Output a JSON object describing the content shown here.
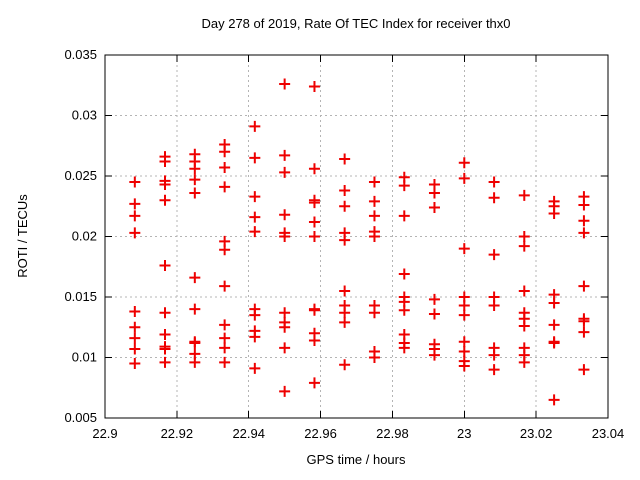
{
  "chart_data": {
    "type": "scatter",
    "title": "Day 278 of 2019, Rate Of TEC Index for receiver thx0",
    "xlabel": "GPS time / hours",
    "ylabel": "ROTI / TECUs",
    "xlim": [
      22.9,
      23.04
    ],
    "ylim": [
      0.005,
      0.035
    ],
    "x_ticks": [
      22.9,
      22.92,
      22.94,
      22.96,
      22.98,
      23,
      23.02,
      23.04
    ],
    "x_tick_labels": [
      "22.9",
      "22.92",
      "22.94",
      "22.96",
      "22.98",
      "23",
      "23.02",
      "23.04"
    ],
    "y_ticks": [
      0.005,
      0.01,
      0.015,
      0.02,
      0.025,
      0.03,
      0.035
    ],
    "y_tick_labels": [
      "0.005",
      "0.01",
      "0.015",
      "0.02",
      "0.025",
      "0.03",
      "0.035"
    ],
    "grid": true,
    "grid_color": "#b4b4b4",
    "border_color": "#000000",
    "legend": "none",
    "marker": {
      "shape": "plus",
      "color": "#ee0000",
      "size": 11
    },
    "series": [
      {
        "points": [
          [
            22.9083,
            0.0245
          ],
          [
            22.9083,
            0.0227
          ],
          [
            22.9083,
            0.0217
          ],
          [
            22.9083,
            0.0203
          ],
          [
            22.9083,
            0.0138
          ],
          [
            22.9083,
            0.0125
          ],
          [
            22.9083,
            0.0116
          ],
          [
            22.9083,
            0.0107
          ],
          [
            22.9083,
            0.0095
          ],
          [
            22.9167,
            0.0266
          ],
          [
            22.9167,
            0.0262
          ],
          [
            22.9167,
            0.0246
          ],
          [
            22.9167,
            0.0243
          ],
          [
            22.9167,
            0.023
          ],
          [
            22.9167,
            0.0176
          ],
          [
            22.9167,
            0.0137
          ],
          [
            22.9167,
            0.0119
          ],
          [
            22.9167,
            0.0109
          ],
          [
            22.9167,
            0.0107
          ],
          [
            22.9167,
            0.0096
          ],
          [
            22.925,
            0.0268
          ],
          [
            22.925,
            0.0262
          ],
          [
            22.925,
            0.0256
          ],
          [
            22.925,
            0.0247
          ],
          [
            22.925,
            0.0236
          ],
          [
            22.925,
            0.0166
          ],
          [
            22.925,
            0.014
          ],
          [
            22.925,
            0.0113
          ],
          [
            22.925,
            0.0112
          ],
          [
            22.925,
            0.0103
          ],
          [
            22.925,
            0.0096
          ],
          [
            22.9333,
            0.0276
          ],
          [
            22.9333,
            0.027
          ],
          [
            22.9333,
            0.0257
          ],
          [
            22.9333,
            0.0241
          ],
          [
            22.9333,
            0.0196
          ],
          [
            22.9333,
            0.0189
          ],
          [
            22.9333,
            0.0159
          ],
          [
            22.9333,
            0.0127
          ],
          [
            22.9333,
            0.0116
          ],
          [
            22.9333,
            0.0108
          ],
          [
            22.9333,
            0.0096
          ],
          [
            22.9417,
            0.0291
          ],
          [
            22.9417,
            0.0265
          ],
          [
            22.9417,
            0.0233
          ],
          [
            22.9417,
            0.0216
          ],
          [
            22.9417,
            0.0204
          ],
          [
            22.9417,
            0.014
          ],
          [
            22.9417,
            0.0135
          ],
          [
            22.9417,
            0.0122
          ],
          [
            22.9417,
            0.0117
          ],
          [
            22.9417,
            0.0091
          ],
          [
            22.95,
            0.0326
          ],
          [
            22.95,
            0.0267
          ],
          [
            22.95,
            0.0253
          ],
          [
            22.95,
            0.0218
          ],
          [
            22.95,
            0.0203
          ],
          [
            22.95,
            0.02
          ],
          [
            22.95,
            0.0137
          ],
          [
            22.95,
            0.0129
          ],
          [
            22.95,
            0.0125
          ],
          [
            22.95,
            0.0108
          ],
          [
            22.95,
            0.0072
          ],
          [
            22.9583,
            0.0324
          ],
          [
            22.9583,
            0.0256
          ],
          [
            22.9583,
            0.023
          ],
          [
            22.9583,
            0.0228
          ],
          [
            22.9583,
            0.0212
          ],
          [
            22.9583,
            0.02
          ],
          [
            22.9583,
            0.014
          ],
          [
            22.9583,
            0.0139
          ],
          [
            22.9583,
            0.012
          ],
          [
            22.9583,
            0.0114
          ],
          [
            22.9583,
            0.0079
          ],
          [
            22.9667,
            0.0264
          ],
          [
            22.9667,
            0.0238
          ],
          [
            22.9667,
            0.0225
          ],
          [
            22.9667,
            0.0203
          ],
          [
            22.9667,
            0.0197
          ],
          [
            22.9667,
            0.0155
          ],
          [
            22.9667,
            0.0143
          ],
          [
            22.9667,
            0.0137
          ],
          [
            22.9667,
            0.0129
          ],
          [
            22.9667,
            0.0094
          ],
          [
            22.975,
            0.0245
          ],
          [
            22.975,
            0.0229
          ],
          [
            22.975,
            0.0217
          ],
          [
            22.975,
            0.0204
          ],
          [
            22.975,
            0.02
          ],
          [
            22.975,
            0.0143
          ],
          [
            22.975,
            0.0137
          ],
          [
            22.975,
            0.0105
          ],
          [
            22.975,
            0.01
          ],
          [
            22.9833,
            0.0249
          ],
          [
            22.9833,
            0.0242
          ],
          [
            22.9833,
            0.0217
          ],
          [
            22.9833,
            0.0169
          ],
          [
            22.9833,
            0.015
          ],
          [
            22.9833,
            0.0146
          ],
          [
            22.9833,
            0.0139
          ],
          [
            22.9833,
            0.0119
          ],
          [
            22.9833,
            0.0112
          ],
          [
            22.9833,
            0.0108
          ],
          [
            22.9917,
            0.0243
          ],
          [
            22.9917,
            0.0236
          ],
          [
            22.9917,
            0.0224
          ],
          [
            22.9917,
            0.0148
          ],
          [
            22.9917,
            0.0136
          ],
          [
            22.9917,
            0.0111
          ],
          [
            22.9917,
            0.0107
          ],
          [
            22.9917,
            0.0102
          ],
          [
            23.0,
            0.0261
          ],
          [
            23.0,
            0.0248
          ],
          [
            23.0,
            0.019
          ],
          [
            23.0,
            0.015
          ],
          [
            23.0,
            0.0143
          ],
          [
            23.0,
            0.0135
          ],
          [
            23.0,
            0.0113
          ],
          [
            23.0,
            0.0105
          ],
          [
            23.0,
            0.0097
          ],
          [
            23.0,
            0.0093
          ],
          [
            23.0083,
            0.0245
          ],
          [
            23.0083,
            0.0232
          ],
          [
            23.0083,
            0.0185
          ],
          [
            23.0083,
            0.015
          ],
          [
            23.0083,
            0.0143
          ],
          [
            23.0083,
            0.0108
          ],
          [
            23.0083,
            0.0102
          ],
          [
            23.0083,
            0.009
          ],
          [
            23.0167,
            0.0234
          ],
          [
            23.0167,
            0.02
          ],
          [
            23.0167,
            0.0192
          ],
          [
            23.0167,
            0.0155
          ],
          [
            23.0167,
            0.0137
          ],
          [
            23.0167,
            0.0132
          ],
          [
            23.0167,
            0.0126
          ],
          [
            23.0167,
            0.0108
          ],
          [
            23.0167,
            0.0102
          ],
          [
            23.0167,
            0.0096
          ],
          [
            23.025,
            0.0229
          ],
          [
            23.025,
            0.0225
          ],
          [
            23.025,
            0.0219
          ],
          [
            23.025,
            0.0152
          ],
          [
            23.025,
            0.0145
          ],
          [
            23.025,
            0.0127
          ],
          [
            23.025,
            0.0113
          ],
          [
            23.025,
            0.0112
          ],
          [
            23.025,
            0.0065
          ],
          [
            23.0333,
            0.0233
          ],
          [
            23.0333,
            0.0226
          ],
          [
            23.0333,
            0.0213
          ],
          [
            23.0333,
            0.0203
          ],
          [
            23.0333,
            0.0159
          ],
          [
            23.0333,
            0.0132
          ],
          [
            23.0333,
            0.013
          ],
          [
            23.0333,
            0.0121
          ],
          [
            23.0333,
            0.009
          ]
        ]
      }
    ]
  }
}
